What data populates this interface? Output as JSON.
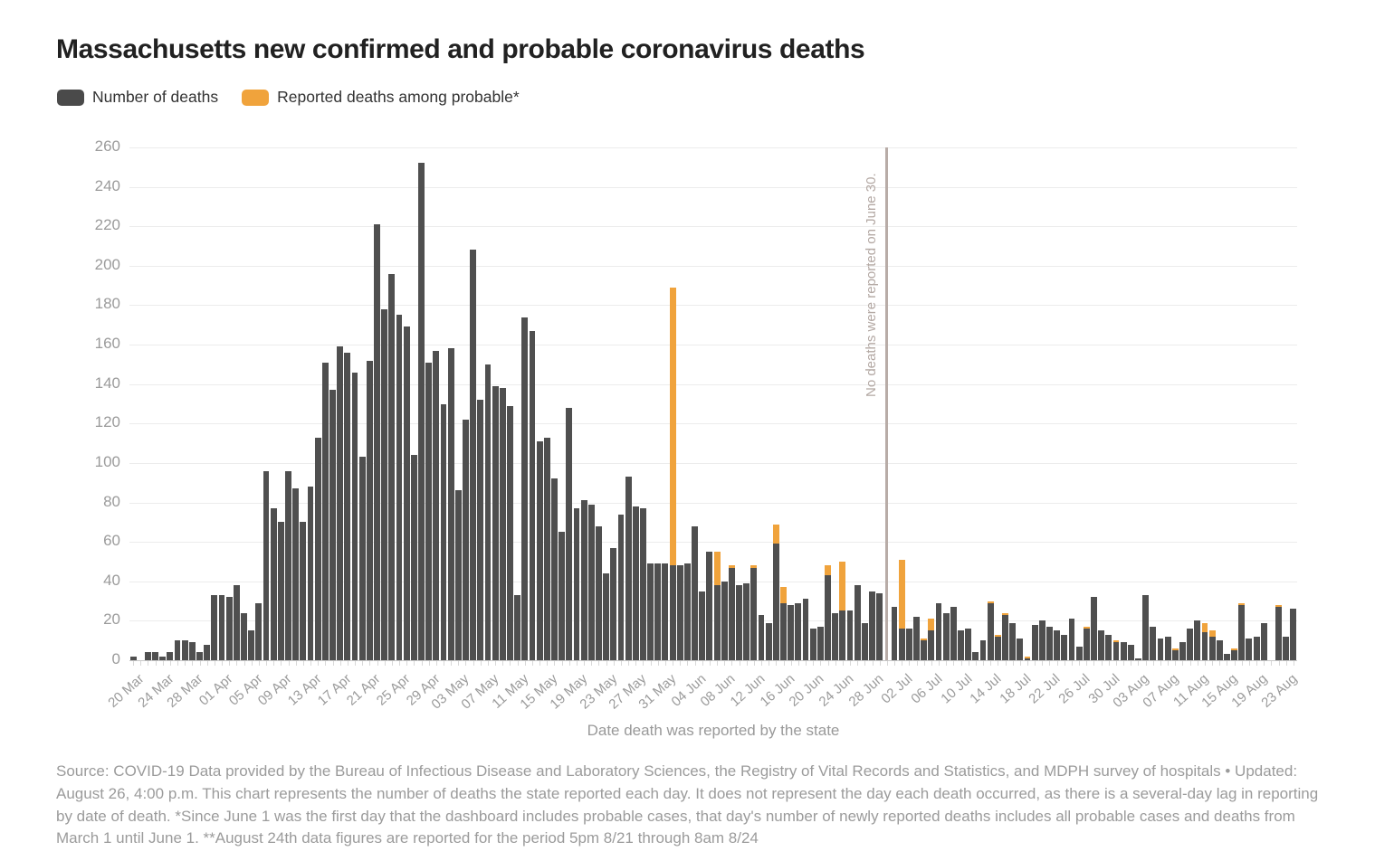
{
  "title": "Massachusetts new confirmed and probable coronavirus deaths",
  "legend": [
    {
      "label": "Number of deaths",
      "color": "#4a4a4a"
    },
    {
      "label": "Reported deaths among probable*",
      "color": "#f0a33c"
    }
  ],
  "colors": {
    "bar_confirmed": "#4f4f4f",
    "bar_probable": "#f0a33c",
    "gridline": "#ececec",
    "zero_line": "#c9c9c9",
    "axis_text": "#9b9b9b",
    "annotation_line": "#b8aca7",
    "annotation_text": "#b3a8a3",
    "title_text": "#212121",
    "footer_text": "#9b9b9b"
  },
  "chart_data": {
    "type": "bar",
    "stacked": true,
    "title": "Massachusetts new confirmed and probable coronavirus deaths",
    "xlabel": "Date death was reported by the state",
    "ylabel": "",
    "ylim": [
      0,
      260
    ],
    "y_ticks": [
      0,
      20,
      40,
      60,
      80,
      100,
      120,
      140,
      160,
      180,
      200,
      220,
      240,
      260
    ],
    "x_start": "20 Mar",
    "x_end": "24 Aug",
    "x_tick_every": 4,
    "x_tick_labels": [
      "20 Mar",
      "24 Mar",
      "28 Mar",
      "01 Apr",
      "05 Apr",
      "09 Apr",
      "13 Apr",
      "17 Apr",
      "21 Apr",
      "25 Apr",
      "29 Apr",
      "03 May",
      "07 May",
      "11 May",
      "15 May",
      "19 May",
      "23 May",
      "27 May",
      "31 May",
      "04 Jun",
      "08 Jun",
      "12 Jun",
      "16 Jun",
      "20 Jun",
      "24 Jun",
      "28 Jun",
      "02 Jul",
      "06 Jul",
      "10 Jul",
      "14 Jul",
      "18 Jul",
      "22 Jul",
      "26 Jul",
      "30 Jul",
      "03 Aug",
      "07 Aug",
      "11 Aug",
      "15 Aug",
      "19 Aug",
      "23 Aug"
    ],
    "annotation": {
      "text": "No deaths were reported on June 30.",
      "slot_index": 102
    },
    "legend_position": "top-left",
    "grid": true,
    "series": [
      {
        "name": "Number of deaths",
        "color": "#4f4f4f",
        "values": [
          2,
          0,
          4,
          4,
          2,
          4,
          10,
          10,
          9,
          4,
          8,
          33,
          33,
          32,
          38,
          24,
          15,
          29,
          96,
          77,
          70,
          96,
          87,
          70,
          88,
          113,
          151,
          137,
          159,
          156,
          146,
          103,
          152,
          221,
          178,
          196,
          175,
          169,
          104,
          252,
          151,
          157,
          130,
          158,
          86,
          122,
          208,
          132,
          150,
          139,
          138,
          129,
          33,
          174,
          167,
          111,
          113,
          92,
          65,
          128,
          77,
          81,
          79,
          68,
          44,
          57,
          74,
          93,
          78,
          77,
          49,
          49,
          49,
          48,
          48,
          49,
          68,
          35,
          55,
          38,
          40,
          47,
          38,
          39,
          47,
          23,
          19,
          59,
          29,
          28,
          29,
          31,
          16,
          17,
          43,
          24,
          25,
          25,
          38,
          19,
          35,
          34,
          0,
          27,
          16,
          16,
          22,
          10,
          15,
          29,
          24,
          27,
          15,
          16,
          4,
          10,
          29,
          12,
          23,
          19,
          11,
          1,
          18,
          20,
          17,
          15,
          13,
          21,
          7,
          16,
          32,
          15,
          13,
          9,
          9,
          8,
          1,
          33,
          17,
          11,
          12,
          5,
          9,
          16,
          20,
          14,
          12,
          10,
          3,
          5,
          28,
          11,
          12,
          19,
          0,
          27,
          12,
          26
        ]
      },
      {
        "name": "Reported deaths among probable*",
        "color": "#f0a33c",
        "values": [
          0,
          0,
          0,
          0,
          0,
          0,
          0,
          0,
          0,
          0,
          0,
          0,
          0,
          0,
          0,
          0,
          0,
          0,
          0,
          0,
          0,
          0,
          0,
          0,
          0,
          0,
          0,
          0,
          0,
          0,
          0,
          0,
          0,
          0,
          0,
          0,
          0,
          0,
          0,
          0,
          0,
          0,
          0,
          0,
          0,
          0,
          0,
          0,
          0,
          0,
          0,
          0,
          0,
          0,
          0,
          0,
          0,
          0,
          0,
          0,
          0,
          0,
          0,
          0,
          0,
          0,
          0,
          0,
          0,
          0,
          0,
          0,
          0,
          141,
          0,
          0,
          0,
          0,
          0,
          17,
          0,
          1,
          0,
          0,
          1,
          0,
          0,
          10,
          8,
          0,
          0,
          0,
          0,
          0,
          5,
          0,
          25,
          0,
          0,
          0,
          0,
          0,
          0,
          0,
          35,
          0,
          0,
          1,
          6,
          0,
          0,
          0,
          0,
          0,
          0,
          0,
          1,
          1,
          1,
          0,
          0,
          1,
          0,
          0,
          0,
          0,
          0,
          0,
          0,
          1,
          0,
          0,
          0,
          1,
          0,
          0,
          0,
          0,
          0,
          0,
          0,
          1,
          0,
          0,
          0,
          5,
          3,
          0,
          0,
          1,
          1,
          0,
          0,
          0,
          0,
          1,
          0,
          0
        ]
      }
    ]
  },
  "footer": {
    "text": "Source: COVID-19 Data provided by the Bureau of Infectious Disease and Laboratory Sciences, the Registry of Vital Records and Statistics, and MDPH survey of hospitals • Updated: August 26, 4:00 p.m. This chart represents the number of deaths the state reported each day. It does not represent the day each death occurred, as there is a several-day lag in reporting by date of death. *Since June 1 was the first day that the dashboard includes probable cases, that day's number of newly reported deaths includes all probable cases and deaths from March 1 until June 1. **August 24th data figures are reported for the period 5pm 8/21 through 8am 8/24"
  }
}
